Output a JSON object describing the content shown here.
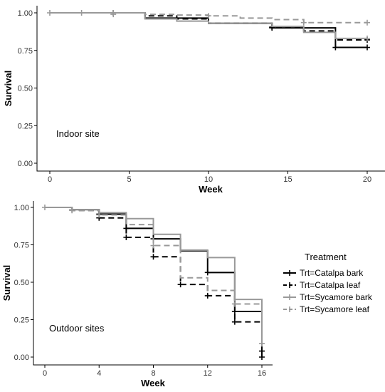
{
  "legend": {
    "title": "Treatment",
    "entries": [
      {
        "label": "Trt=Catalpa bark",
        "color": "#000000",
        "dash": "solid"
      },
      {
        "label": "Trt=Catalpa leaf",
        "color": "#000000",
        "dash": "dashed"
      },
      {
        "label": "Trt=Sycamore bark",
        "color": "#999999",
        "dash": "solid"
      },
      {
        "label": "Trt=Sycamore leaf",
        "color": "#999999",
        "dash": "dashed"
      }
    ],
    "placement": "right"
  },
  "chart_data": [
    {
      "type": "line",
      "step": true,
      "title": "",
      "annotation": "Indoor site",
      "xlabel": "Week",
      "ylabel": "Survival",
      "xlim": [
        -1,
        21
      ],
      "ylim": [
        -0.03,
        1.03
      ],
      "xticks": [
        0,
        5,
        10,
        15,
        20
      ],
      "yticks": [
        0.0,
        0.25,
        0.5,
        0.75,
        1.0
      ],
      "ytick_labels": [
        "0.00",
        "0.25",
        "0.50",
        "0.75",
        "1.00"
      ],
      "grid": false,
      "series": [
        {
          "name": "Trt=Catalpa bark",
          "color": "#000000",
          "dash": "solid",
          "x": [
            0,
            6,
            10,
            14,
            18,
            20
          ],
          "y": [
            1.0,
            0.965,
            0.93,
            0.9,
            0.77,
            0.77
          ],
          "censor_x": [
            4,
            14,
            18,
            20
          ],
          "censor_y": [
            1.0,
            0.9,
            0.77,
            0.77
          ]
        },
        {
          "name": "Trt=Catalpa leaf",
          "color": "#000000",
          "dash": "dashed",
          "x": [
            0,
            6,
            8,
            10,
            14,
            16,
            18,
            20
          ],
          "y": [
            1.0,
            0.98,
            0.96,
            0.93,
            0.905,
            0.88,
            0.82,
            0.82
          ],
          "censor_x": [
            4,
            14,
            20
          ],
          "censor_y": [
            1.0,
            0.905,
            0.82
          ],
          "hidden_legend": false
        },
        {
          "name": "Trt=Sycamore bark",
          "color": "#999999",
          "dash": "solid",
          "x": [
            0,
            6,
            8,
            10,
            14,
            16,
            18,
            20
          ],
          "y": [
            1.0,
            0.96,
            0.945,
            0.93,
            0.91,
            0.87,
            0.83,
            0.83
          ],
          "censor_x": [
            0,
            2,
            4,
            20
          ],
          "censor_y": [
            1.0,
            1.0,
            1.0,
            0.83
          ]
        },
        {
          "name": "Trt=Sycamore leaf",
          "color": "#999999",
          "dash": "dashed",
          "x": [
            0,
            6,
            8,
            10,
            12,
            14,
            16,
            20
          ],
          "y": [
            1.0,
            0.99,
            0.985,
            0.98,
            0.965,
            0.955,
            0.935,
            0.935
          ],
          "censor_x": [
            4,
            10,
            16,
            20
          ],
          "censor_y": [
            0.99,
            0.98,
            0.935,
            0.935
          ]
        }
      ]
    },
    {
      "type": "line",
      "step": true,
      "title": "",
      "annotation": "Outdoor sites",
      "xlabel": "Week",
      "ylabel": "Survival",
      "xlim": [
        -0.7,
        16.7
      ],
      "ylim": [
        -0.03,
        1.03
      ],
      "xticks": [
        0,
        4,
        8,
        12,
        16
      ],
      "yticks": [
        0.0,
        0.25,
        0.5,
        0.75,
        1.0
      ],
      "ytick_labels": [
        "0.00",
        "0.25",
        "0.50",
        "0.75",
        "1.00"
      ],
      "grid": false,
      "series": [
        {
          "name": "Trt=Catalpa bark",
          "color": "#000000",
          "dash": "solid",
          "x": [
            0,
            2,
            4,
            6,
            8,
            10,
            12,
            14,
            16
          ],
          "y": [
            1.0,
            0.985,
            0.955,
            0.86,
            0.79,
            0.71,
            0.565,
            0.305,
            0.04
          ],
          "censor_x": [
            4,
            6,
            8,
            12,
            14,
            16
          ],
          "censor_y": [
            0.955,
            0.86,
            0.79,
            0.565,
            0.305,
            0.04
          ]
        },
        {
          "name": "Trt=Catalpa leaf",
          "color": "#000000",
          "dash": "dashed",
          "x": [
            0,
            2,
            4,
            6,
            8,
            10,
            12,
            14,
            16
          ],
          "y": [
            1.0,
            0.98,
            0.93,
            0.8,
            0.67,
            0.485,
            0.41,
            0.235,
            0.0
          ],
          "censor_x": [
            4,
            6,
            8,
            10,
            12,
            14,
            16
          ],
          "censor_y": [
            0.93,
            0.8,
            0.67,
            0.485,
            0.41,
            0.235,
            0.0
          ]
        },
        {
          "name": "Trt=Sycamore bark",
          "color": "#999999",
          "dash": "solid",
          "x": [
            0,
            2,
            4,
            6,
            8,
            10,
            12,
            14,
            16
          ],
          "y": [
            1.0,
            0.985,
            0.965,
            0.925,
            0.82,
            0.715,
            0.665,
            0.385,
            0.07
          ],
          "censor_x": [
            0,
            2
          ],
          "censor_y": [
            1.0,
            0.985
          ]
        },
        {
          "name": "Trt=Sycamore leaf",
          "color": "#999999",
          "dash": "dashed",
          "x": [
            0,
            2,
            4,
            6,
            8,
            10,
            12,
            14,
            16
          ],
          "y": [
            1.0,
            0.98,
            0.95,
            0.885,
            0.745,
            0.53,
            0.445,
            0.355,
            0.09
          ],
          "censor_x": [
            2,
            4,
            8,
            14,
            16
          ],
          "censor_y": [
            0.98,
            0.95,
            0.745,
            0.355,
            0.09
          ]
        }
      ]
    }
  ]
}
